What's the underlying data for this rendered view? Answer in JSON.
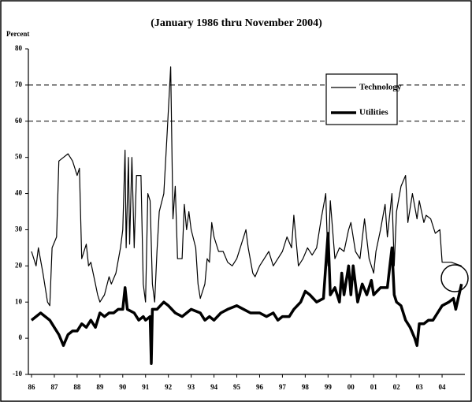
{
  "chart_data": {
    "type": "line",
    "title": "(January 1986 thru November 2004)",
    "ylabel": "Percent",
    "xlim": [
      1986,
      2005
    ],
    "ylim": [
      -10,
      80
    ],
    "yticks": [
      -10,
      0,
      10,
      20,
      30,
      40,
      50,
      60,
      70,
      80
    ],
    "xticks": [
      {
        "value": 1986,
        "label": "86"
      },
      {
        "value": 1987,
        "label": "87"
      },
      {
        "value": 1988,
        "label": "88"
      },
      {
        "value": 1989,
        "label": "89"
      },
      {
        "value": 1990,
        "label": "90"
      },
      {
        "value": 1991,
        "label": "91"
      },
      {
        "value": 1992,
        "label": "92"
      },
      {
        "value": 1993,
        "label": "93"
      },
      {
        "value": 1994,
        "label": "94"
      },
      {
        "value": 1995,
        "label": "95"
      },
      {
        "value": 1996,
        "label": "96"
      },
      {
        "value": 1997,
        "label": "97"
      },
      {
        "value": 1998,
        "label": "98"
      },
      {
        "value": 1999,
        "label": "99"
      },
      {
        "value": 2000,
        "label": "00"
      },
      {
        "value": 2001,
        "label": "01"
      },
      {
        "value": 2002,
        "label": "02"
      },
      {
        "value": 2003,
        "label": "03"
      },
      {
        "value": 2004,
        "label": "04"
      }
    ],
    "reference_lines": [
      70,
      60
    ],
    "grid": false,
    "legend": "upper right",
    "series": [
      {
        "name": "Technology",
        "color": "#000000",
        "width": 1.2,
        "x": [
          1986.0,
          1986.2,
          1986.3,
          1986.5,
          1986.7,
          1986.8,
          1986.9,
          1987.1,
          1987.2,
          1987.4,
          1987.6,
          1987.8,
          1988.0,
          1988.1,
          1988.2,
          1988.4,
          1988.5,
          1988.6,
          1988.8,
          1988.9,
          1989.0,
          1989.2,
          1989.4,
          1989.5,
          1989.7,
          1989.9,
          1990.0,
          1990.1,
          1990.15,
          1990.25,
          1990.3,
          1990.4,
          1990.5,
          1990.6,
          1990.8,
          1990.9,
          1991.0,
          1991.1,
          1991.2,
          1991.3,
          1991.4,
          1991.5,
          1991.6,
          1991.8,
          1991.95,
          1992.1,
          1992.2,
          1992.3,
          1992.4,
          1992.6,
          1992.7,
          1992.8,
          1992.9,
          1993.0,
          1993.2,
          1993.3,
          1993.4,
          1993.6,
          1993.7,
          1993.8,
          1993.9,
          1994.0,
          1994.2,
          1994.4,
          1994.6,
          1994.8,
          1995.0,
          1995.2,
          1995.4,
          1995.5,
          1995.7,
          1995.8,
          1996.0,
          1996.2,
          1996.4,
          1996.6,
          1996.8,
          1997.0,
          1997.2,
          1997.4,
          1997.5,
          1997.7,
          1997.9,
          1998.1,
          1998.3,
          1998.5,
          1998.7,
          1998.9,
          1999.0,
          1999.1,
          1999.3,
          1999.5,
          1999.7,
          1999.9,
          2000.0,
          2000.2,
          2000.4,
          2000.6,
          2000.8,
          2001.0,
          2001.1,
          2001.3,
          2001.5,
          2001.6,
          2001.8,
          2001.9,
          2002.0,
          2002.2,
          2002.4,
          2002.5,
          2002.7,
          2002.9,
          2003.0,
          2003.2,
          2003.3,
          2003.5,
          2003.7,
          2003.9,
          2004.0,
          2004.4,
          2004.85
        ],
        "values": [
          24,
          20,
          25,
          18,
          10,
          9,
          25,
          28,
          49,
          50,
          51,
          49,
          45,
          47,
          22,
          26,
          20,
          21,
          15,
          12,
          10,
          12,
          17,
          15,
          18,
          25,
          30,
          52,
          25,
          50,
          26,
          50,
          25,
          45,
          45,
          15,
          10,
          40,
          38,
          15,
          10,
          24,
          35,
          40,
          57,
          75,
          33,
          42,
          22,
          22,
          37,
          30,
          35,
          30,
          25,
          15,
          11,
          15,
          22,
          21,
          32,
          28,
          24,
          24,
          21,
          20,
          22,
          26,
          30,
          25,
          18,
          17,
          20,
          22,
          24,
          20,
          22,
          24,
          28,
          25,
          34,
          20,
          22,
          25,
          23,
          25,
          33,
          40,
          20,
          38,
          22,
          25,
          24,
          30,
          32,
          24,
          22,
          33,
          22,
          18,
          24,
          30,
          37,
          28,
          40,
          20,
          35,
          42,
          45,
          32,
          40,
          33,
          38,
          32,
          34,
          33,
          29,
          30,
          21,
          21,
          20
        ]
      },
      {
        "name": "Utilities",
        "color": "#000000",
        "width": 3.5,
        "x": [
          1986.0,
          1986.2,
          1986.4,
          1986.6,
          1986.8,
          1987.0,
          1987.2,
          1987.4,
          1987.6,
          1987.8,
          1988.0,
          1988.2,
          1988.4,
          1988.6,
          1988.8,
          1989.0,
          1989.2,
          1989.4,
          1989.6,
          1989.8,
          1990.0,
          1990.1,
          1990.2,
          1990.5,
          1990.7,
          1990.9,
          1991.0,
          1991.2,
          1991.25,
          1991.3,
          1991.5,
          1991.8,
          1992.0,
          1992.3,
          1992.6,
          1993.0,
          1993.4,
          1993.6,
          1993.8,
          1994.0,
          1994.3,
          1994.6,
          1995.0,
          1995.3,
          1995.6,
          1996.0,
          1996.3,
          1996.6,
          1996.8,
          1997.0,
          1997.3,
          1997.5,
          1997.8,
          1998.0,
          1998.2,
          1998.5,
          1998.8,
          1999.0,
          1999.1,
          1999.3,
          1999.5,
          1999.6,
          1999.7,
          1999.9,
          2000.0,
          2000.1,
          2000.3,
          2000.5,
          2000.7,
          2000.9,
          2001.0,
          2001.3,
          2001.6,
          2001.8,
          2001.9,
          2002.0,
          2002.2,
          2002.4,
          2002.6,
          2002.8,
          2002.9,
          2003.0,
          2003.2,
          2003.4,
          2003.6,
          2003.8,
          2004.0,
          2004.3,
          2004.5,
          2004.6,
          2004.85
        ],
        "values": [
          5,
          6,
          7,
          6,
          5,
          3,
          1,
          -2,
          1,
          2,
          2,
          4,
          3,
          5,
          3,
          7,
          6,
          7,
          7,
          8,
          8,
          14,
          8,
          7,
          5,
          6,
          5,
          6,
          -7,
          8,
          8,
          10,
          9,
          7,
          6,
          8,
          7,
          5,
          6,
          5,
          7,
          8,
          9,
          8,
          7,
          7,
          6,
          7,
          5,
          6,
          6,
          8,
          10,
          13,
          12,
          10,
          11,
          29,
          12,
          14,
          10,
          18,
          12,
          20,
          12,
          20,
          10,
          15,
          12,
          16,
          12,
          14,
          14,
          25,
          12,
          10,
          9,
          5,
          3,
          0,
          -2,
          4,
          4,
          5,
          5,
          7,
          9,
          10,
          11,
          8,
          15
        ]
      }
    ]
  }
}
